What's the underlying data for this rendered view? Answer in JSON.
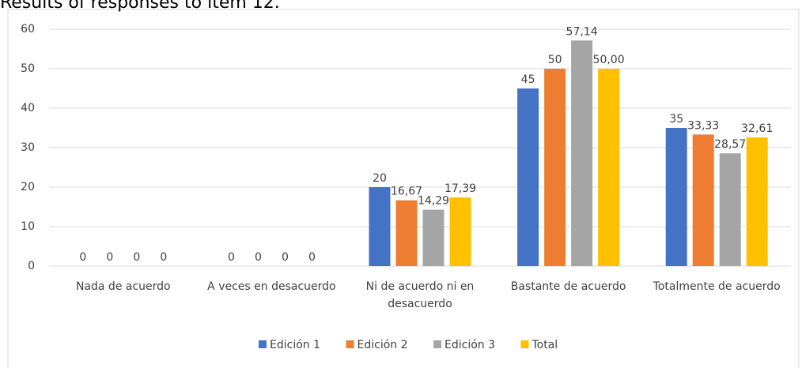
{
  "chart_data": {
    "type": "bar",
    "title": "Results of responses to item 12.",
    "categories": [
      "Nada de acuerdo",
      "A veces en desacuerdo",
      "Ni de acuerdo ni en desacuerdo",
      "Bastante de acuerdo",
      "Totalmente de acuerdo"
    ],
    "series": [
      {
        "name": "Edición 1",
        "color": "#4472c4",
        "values": [
          0,
          0,
          20,
          45,
          35
        ],
        "value_labels": [
          "0",
          "0",
          "20",
          "45",
          "35"
        ]
      },
      {
        "name": "Edición 2",
        "color": "#ed7d31",
        "values": [
          0,
          0,
          16.67,
          50,
          33.33
        ],
        "value_labels": [
          "0",
          "0",
          "16,67",
          "50",
          "33,33"
        ]
      },
      {
        "name": "Edición 3",
        "color": "#a5a5a5",
        "values": [
          0,
          0,
          14.29,
          57.14,
          28.57
        ],
        "value_labels": [
          "0",
          "0",
          "14,29",
          "57,14",
          "28,57"
        ]
      },
      {
        "name": "Total",
        "color": "#ffc000",
        "values": [
          0,
          0,
          17.39,
          50,
          32.61
        ],
        "value_labels": [
          "0",
          "0",
          "17,39",
          "50,00",
          "32,61"
        ]
      }
    ],
    "ylim": [
      0,
      60
    ],
    "yticks": [
      0,
      10,
      20,
      30,
      40,
      50,
      60
    ],
    "grid": true,
    "legend": "bottom"
  }
}
